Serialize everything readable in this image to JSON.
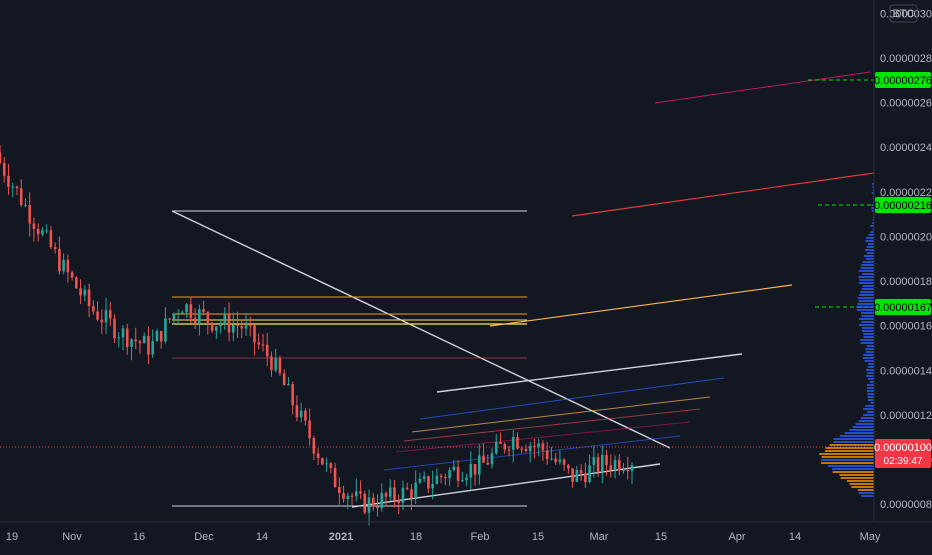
{
  "currency_badge": "BTC",
  "price_axis": {
    "tick_labels": [
      "0.00000300",
      "0.00000280",
      "0.00000260",
      "0.00000240",
      "0.00000220",
      "0.00000200",
      "0.00000180",
      "0.00000160",
      "0.00000140",
      "0.00000120",
      "0.00000100",
      "0.00000080"
    ]
  },
  "time_axis": {
    "tick_labels": [
      "19",
      "Nov",
      "16",
      "Dec",
      "14",
      "2021",
      "18",
      "Feb",
      "15",
      "Mar",
      "15",
      "Apr",
      "14",
      "May"
    ]
  },
  "alerts": [
    {
      "label": "0.00000276",
      "value": 2.76e-06
    },
    {
      "label": "0.00000216",
      "value": 2.16e-06
    },
    {
      "label": "0.00000167",
      "value": 1.67e-06
    }
  ],
  "current_price": {
    "label": "0.00000100",
    "countdown": "02:39:47",
    "value": 1e-06
  },
  "colors": {
    "background": "#131722",
    "up": "#26a69a",
    "down": "#ef5350",
    "alert": "#00e600",
    "current_price": "#f23645",
    "drawing_white": "#d1d4dc",
    "drawing_orange": "#ff9800",
    "drawing_red": "#c2185b",
    "volume_profile_blue": "#2962ff",
    "volume_profile_orange": "#ff9800"
  },
  "chart_data": {
    "type": "candlestick",
    "x": [
      "2020-10-12",
      "2020-10-19",
      "2020-10-26",
      "2020-11-02",
      "2020-11-09",
      "2020-11-16",
      "2020-11-23",
      "2020-11-30",
      "2020-12-07",
      "2020-12-14",
      "2020-12-21",
      "2020-12-28",
      "2021-01-04",
      "2021-01-11",
      "2021-01-18",
      "2021-01-25",
      "2021-02-01",
      "2021-02-08",
      "2021-02-15",
      "2021-02-22",
      "2021-03-01",
      "2021-03-08"
    ],
    "close": [
      2.33e-06,
      2.1e-06,
      1.88e-06,
      1.68e-06,
      1.57e-06,
      1.5e-06,
      1.7e-06,
      1.62e-06,
      1.6e-06,
      1.45e-06,
      1.18e-06,
      9.2e-07,
      8e-07,
      8.3e-07,
      8.8e-07,
      9.5e-07,
      9.7e-07,
      1.1e-06,
      1.05e-06,
      9.2e-07,
      9.8e-07,
      1e-06
    ],
    "ylim": [
      7.2e-07,
      3.06e-06
    ],
    "scale": "linear",
    "grid": false
  }
}
